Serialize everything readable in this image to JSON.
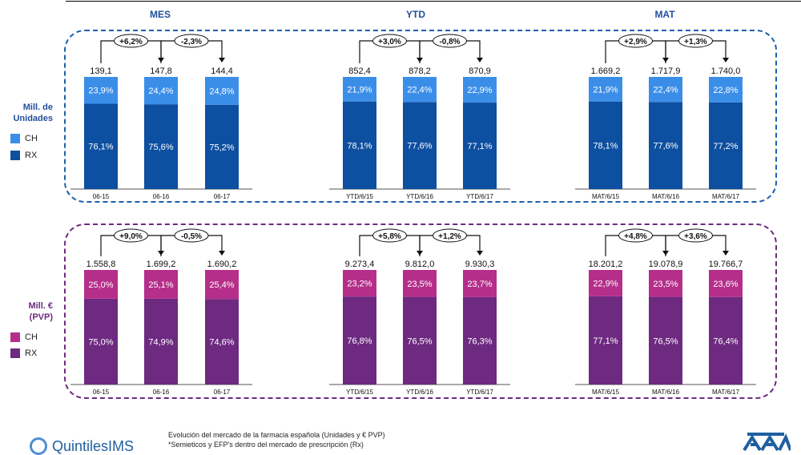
{
  "headers": [
    "MES",
    "YTD",
    "MAT"
  ],
  "legend": {
    "units_title_1": "Mill. de",
    "units_title_2": "Unidades",
    "eur_title_1": "Mill. €",
    "eur_title_2": "(PVP)",
    "ch": "CH",
    "rx": "RX"
  },
  "colors": {
    "units_ch": "#3b8ee8",
    "units_rx": "#0d4fa0",
    "eur_ch": "#b52e89",
    "eur_rx": "#6d2a80",
    "units_border": "#1f5fb0",
    "eur_border": "#6d2a80"
  },
  "chart_data": [
    {
      "type": "bar",
      "stacked": true,
      "panel": "units",
      "group": "MES",
      "categories": [
        "06-15",
        "06-16",
        "06-17"
      ],
      "totals_label": [
        "139,1",
        "147,8",
        "144,4"
      ],
      "series": [
        {
          "name": "RX",
          "values": [
            76.1,
            75.6,
            75.2
          ],
          "labels": [
            "76,1%",
            "75,6%",
            "75,2%"
          ]
        },
        {
          "name": "CH",
          "values": [
            23.9,
            24.4,
            24.8
          ],
          "labels": [
            "23,9%",
            "24,4%",
            "24,8%"
          ]
        }
      ],
      "growth": [
        "+6,2%",
        "-2,3%"
      ]
    },
    {
      "type": "bar",
      "stacked": true,
      "panel": "units",
      "group": "YTD",
      "categories": [
        "YTD/6/15",
        "YTD/6/16",
        "YTD/6/17"
      ],
      "totals_label": [
        "852,4",
        "878,2",
        "870,9"
      ],
      "series": [
        {
          "name": "RX",
          "values": [
            78.1,
            77.6,
            77.1
          ],
          "labels": [
            "78,1%",
            "77,6%",
            "77,1%"
          ]
        },
        {
          "name": "CH",
          "values": [
            21.9,
            22.4,
            22.9
          ],
          "labels": [
            "21,9%",
            "22,4%",
            "22,9%"
          ]
        }
      ],
      "growth": [
        "+3,0%",
        "-0,8%"
      ]
    },
    {
      "type": "bar",
      "stacked": true,
      "panel": "units",
      "group": "MAT",
      "categories": [
        "MAT/6/15",
        "MAT/6/16",
        "MAT/6/17"
      ],
      "totals_label": [
        "1.669,2",
        "1.717,9",
        "1.740,0"
      ],
      "series": [
        {
          "name": "RX",
          "values": [
            78.1,
            77.6,
            77.2
          ],
          "labels": [
            "78,1%",
            "77,6%",
            "77,2%"
          ]
        },
        {
          "name": "CH",
          "values": [
            21.9,
            22.4,
            22.8
          ],
          "labels": [
            "21,9%",
            "22,4%",
            "22,8%"
          ]
        }
      ],
      "growth": [
        "+2,9%",
        "+1,3%"
      ]
    },
    {
      "type": "bar",
      "stacked": true,
      "panel": "eur",
      "group": "MES",
      "categories": [
        "06-15",
        "06-16",
        "06-17"
      ],
      "totals_label": [
        "1.558,8",
        "1.699,2",
        "1.690,2"
      ],
      "series": [
        {
          "name": "RX",
          "values": [
            75.0,
            74.9,
            74.6
          ],
          "labels": [
            "75,0%",
            "74,9%",
            "74,6%"
          ]
        },
        {
          "name": "CH",
          "values": [
            25.0,
            25.1,
            25.4
          ],
          "labels": [
            "25,0%",
            "25,1%",
            "25,4%"
          ]
        }
      ],
      "growth": [
        "+9,0%",
        "-0,5%"
      ]
    },
    {
      "type": "bar",
      "stacked": true,
      "panel": "eur",
      "group": "YTD",
      "categories": [
        "YTD/6/15",
        "YTD/6/16",
        "YTD/6/17"
      ],
      "totals_label": [
        "9.273,4",
        "9.812,0",
        "9.930,3"
      ],
      "series": [
        {
          "name": "RX",
          "values": [
            76.8,
            76.5,
            76.3
          ],
          "labels": [
            "76,8%",
            "76,5%",
            "76,3%"
          ]
        },
        {
          "name": "CH",
          "values": [
            23.2,
            23.5,
            23.7
          ],
          "labels": [
            "23,2%",
            "23,5%",
            "23,7%"
          ]
        }
      ],
      "growth": [
        "+5,8%",
        "+1,2%"
      ]
    },
    {
      "type": "bar",
      "stacked": true,
      "panel": "eur",
      "group": "MAT",
      "categories": [
        "MAT/6/15",
        "MAT/6/16",
        "MAT/6/17"
      ],
      "totals_label": [
        "18.201,2",
        "19.078,9",
        "19.766,7"
      ],
      "series": [
        {
          "name": "RX",
          "values": [
            77.1,
            76.5,
            76.4
          ],
          "labels": [
            "77,1%",
            "76,5%",
            "76,4%"
          ]
        },
        {
          "name": "CH",
          "values": [
            22.9,
            23.5,
            23.6
          ],
          "labels": [
            "22,9%",
            "23,5%",
            "23,6%"
          ]
        }
      ],
      "growth": [
        "+4,8%",
        "+3,6%"
      ]
    }
  ],
  "footer": {
    "line1": "Evolución del mercado de la farmacia española (Unidades y € PVP)",
    "line2": "*Semieticos y EFP's dentro del mercado de prescripción (Rx)"
  },
  "logo_text": "QuintilesIMS"
}
